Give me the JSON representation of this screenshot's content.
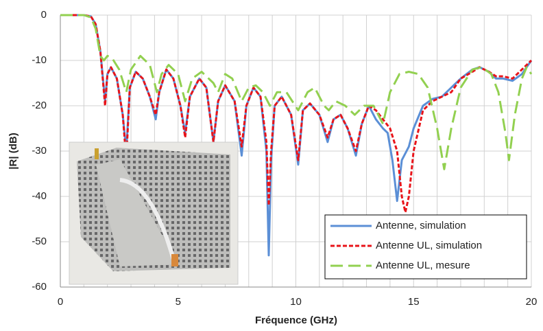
{
  "chart_data": {
    "type": "line",
    "x_label": "Fréquence (GHz)",
    "y_label": "|R|  (dB)",
    "xlim": [
      0,
      20
    ],
    "xticks": [
      0,
      5,
      10,
      15,
      20
    ],
    "xgrid": [
      0,
      1,
      2,
      3,
      4,
      5,
      6,
      7,
      8,
      9,
      10,
      11,
      12,
      13,
      14,
      15,
      16,
      17,
      18,
      19,
      20
    ],
    "ylim": [
      -60,
      0
    ],
    "yticks": [
      -60,
      -50,
      -40,
      -30,
      -20,
      -10,
      0
    ],
    "grid": true,
    "legend": "lower right",
    "series": [
      {
        "name": "Antenne, simulation",
        "color": "#5b8fd6",
        "dash": "solid",
        "x": [
          0,
          1,
          1.3,
          1.5,
          1.7,
          1.9,
          2.0,
          2.15,
          2.4,
          2.65,
          2.8,
          2.95,
          3.2,
          3.5,
          3.8,
          4.05,
          4.2,
          4.5,
          4.8,
          5.1,
          5.3,
          5.5,
          5.9,
          6.2,
          6.5,
          6.7,
          7.0,
          7.4,
          7.7,
          7.9,
          8.2,
          8.5,
          8.75,
          8.85,
          8.95,
          9.1,
          9.4,
          9.8,
          10.1,
          10.3,
          10.6,
          11.0,
          11.35,
          11.6,
          11.9,
          12.2,
          12.55,
          12.8,
          13.1,
          13.4,
          13.7,
          13.9,
          14.1,
          14.3,
          14.5,
          14.8,
          15.0,
          15.4,
          15.8,
          16.2,
          16.6,
          17.0,
          17.5,
          17.8,
          18.2,
          18.5,
          18.8,
          19.2,
          19.6,
          20
        ],
        "values": [
          0,
          0,
          -0.3,
          -2,
          -8,
          -19,
          -13,
          -11.5,
          -14,
          -22,
          -30,
          -16,
          -12.5,
          -14,
          -18,
          -23,
          -17,
          -12,
          -14,
          -20,
          -26,
          -18,
          -14,
          -16,
          -28,
          -19,
          -15.5,
          -19,
          -31,
          -20,
          -16,
          -18,
          -30,
          -53,
          -32,
          -20,
          -18,
          -22,
          -33,
          -21,
          -19.5,
          -22,
          -28,
          -23,
          -22,
          -25,
          -31,
          -24,
          -20,
          -23,
          -25,
          -26,
          -32,
          -41,
          -32,
          -29,
          -25,
          -20,
          -18.5,
          -18,
          -16,
          -14,
          -12,
          -11.5,
          -12.5,
          -14,
          -14,
          -14.5,
          -13,
          -10
        ]
      },
      {
        "name": "Antenne UL, simulation",
        "color": "#e8141a",
        "dash": "dotted",
        "x": [
          0,
          1,
          1.3,
          1.5,
          1.7,
          1.9,
          2.0,
          2.15,
          2.4,
          2.65,
          2.8,
          2.95,
          3.2,
          3.5,
          3.8,
          4.05,
          4.2,
          4.5,
          4.8,
          5.1,
          5.3,
          5.5,
          5.9,
          6.2,
          6.5,
          6.7,
          7.0,
          7.4,
          7.7,
          7.9,
          8.2,
          8.5,
          8.75,
          8.85,
          8.95,
          9.1,
          9.4,
          9.8,
          10.1,
          10.3,
          10.6,
          11.0,
          11.35,
          11.6,
          11.9,
          12.2,
          12.55,
          12.8,
          13.1,
          13.4,
          13.7,
          14.0,
          14.3,
          14.5,
          14.65,
          14.8,
          15.0,
          15.4,
          15.8,
          16.2,
          16.6,
          17.0,
          17.5,
          17.8,
          18.2,
          18.5,
          18.8,
          19.2,
          19.6,
          20
        ],
        "values": [
          0,
          0,
          -0.3,
          -2,
          -8,
          -20,
          -13,
          -11.5,
          -14,
          -22,
          -32,
          -16,
          -12.5,
          -14,
          -18,
          -22,
          -17,
          -12,
          -14,
          -20,
          -27,
          -18,
          -14,
          -16,
          -28,
          -19,
          -15.5,
          -19,
          -29,
          -20,
          -16,
          -18,
          -28,
          -42,
          -30,
          -20,
          -18,
          -22,
          -32,
          -21,
          -19.5,
          -22,
          -27,
          -23,
          -22,
          -25,
          -30,
          -24,
          -20,
          -21,
          -23,
          -25,
          -30,
          -40,
          -43.5,
          -40,
          -30,
          -21,
          -19,
          -18,
          -17,
          -14,
          -12.5,
          -11.5,
          -12.5,
          -13.5,
          -13.5,
          -14,
          -12,
          -10
        ]
      },
      {
        "name": "Antenne UL, mesure",
        "color": "#92d050",
        "dash": "dashed",
        "x": [
          0,
          1,
          1.3,
          1.5,
          1.7,
          1.85,
          2.0,
          2.2,
          2.5,
          2.8,
          3.0,
          3.4,
          3.8,
          4.1,
          4.3,
          4.6,
          5.0,
          5.3,
          5.6,
          6.0,
          6.5,
          6.7,
          7.0,
          7.3,
          7.7,
          8.0,
          8.3,
          8.6,
          8.9,
          9.2,
          9.6,
          10.1,
          10.5,
          10.8,
          11.2,
          11.4,
          11.7,
          12.1,
          12.5,
          12.9,
          13.3,
          13.7,
          14.0,
          14.4,
          14.8,
          15.2,
          15.6,
          16.0,
          16.3,
          16.6,
          17.0,
          17.5,
          17.9,
          18.3,
          18.6,
          18.9,
          19.05,
          19.3,
          19.6,
          19.8,
          20
        ],
        "values": [
          0,
          0,
          -0.5,
          -3,
          -9,
          -10,
          -9,
          -9.5,
          -12,
          -17,
          -12,
          -9,
          -11,
          -17,
          -13,
          -11,
          -13,
          -19,
          -14,
          -12.5,
          -15,
          -17,
          -13,
          -14,
          -19,
          -16,
          -15.5,
          -17,
          -20,
          -17,
          -17,
          -21,
          -17,
          -16,
          -20,
          -21,
          -19,
          -20,
          -22,
          -20,
          -20,
          -24,
          -17,
          -13,
          -12.5,
          -13,
          -16,
          -25,
          -34,
          -25,
          -16,
          -12,
          -11.5,
          -13,
          -17,
          -26,
          -32,
          -22,
          -14,
          -11.5,
          -13
        ]
      }
    ]
  }
}
